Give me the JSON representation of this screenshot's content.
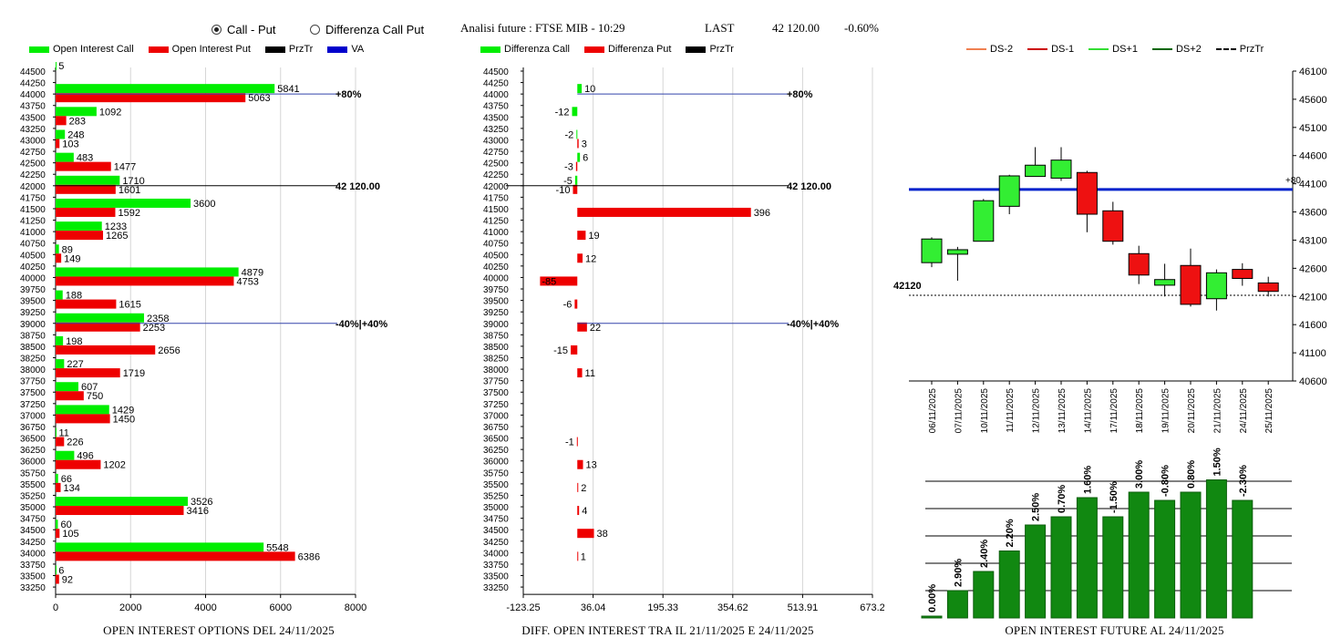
{
  "controls": {
    "radio_call_put": "Call - Put",
    "radio_diff": "Differenza Call Put",
    "analysis_label": "Analisi future : FTSE MIB - 10:29",
    "last_label": "LAST",
    "last_value": "42 120.00",
    "last_change": "-0.60%"
  },
  "legend1": [
    {
      "label": "Open Interest Call",
      "color": "#00ee00"
    },
    {
      "label": "Open Interest Put",
      "color": "#ee0000"
    },
    {
      "label": "PrzTr",
      "color": "#000000"
    },
    {
      "label": "VA",
      "color": "#0000cc"
    }
  ],
  "legend2": [
    {
      "label": "Differenza Call",
      "color": "#00ee00"
    },
    {
      "label": "Differenza Put",
      "color": "#ee0000"
    },
    {
      "label": "PrzTr",
      "color": "#000000"
    }
  ],
  "legend3": [
    {
      "label": "DS-2",
      "color": "#f08050",
      "dash": false
    },
    {
      "label": "DS-1",
      "color": "#cc0000",
      "dash": false
    },
    {
      "label": "DS+1",
      "color": "#33dd33",
      "dash": false
    },
    {
      "label": "DS+2",
      "color": "#006600",
      "dash": false
    },
    {
      "label": "PrzTr",
      "color": "#000000",
      "dash": true
    }
  ],
  "captions": {
    "left": "OPEN INTEREST OPTIONS DEL 24/11/2025",
    "mid": "DIFF. OPEN INTEREST TRA IL 21/11/2025 E 24/11/2025",
    "right": "OPEN INTEREST FUTURE AL 24/11/2025"
  },
  "chart_data": [
    {
      "type": "bar",
      "orientation": "horizontal",
      "categories": [
        "44500",
        "44250",
        "44000",
        "43750",
        "43500",
        "43250",
        "43000",
        "42750",
        "42500",
        "42250",
        "42000",
        "41750",
        "41500",
        "41250",
        "41000",
        "40750",
        "40500",
        "40250",
        "40000",
        "39750",
        "39500",
        "39250",
        "39000",
        "38750",
        "38500",
        "38250",
        "38000",
        "37750",
        "37500",
        "37250",
        "37000",
        "36750",
        "36500",
        "36250",
        "36000",
        "35750",
        "35500",
        "35250",
        "35000",
        "34750",
        "34500",
        "34250",
        "34000",
        "33750",
        "33500",
        "33250"
      ],
      "series": [
        {
          "name": "Open Interest Call",
          "values": [
            5,
            null,
            5841,
            null,
            1092,
            null,
            248,
            null,
            483,
            null,
            1710,
            null,
            3600,
            null,
            1233,
            null,
            89,
            null,
            4879,
            null,
            188,
            null,
            2358,
            null,
            198,
            null,
            227,
            null,
            607,
            null,
            1429,
            null,
            11,
            null,
            496,
            null,
            66,
            null,
            3526,
            null,
            60,
            null,
            5548,
            null,
            6,
            null
          ]
        },
        {
          "name": "Open Interest Put",
          "values": [
            null,
            null,
            5063,
            null,
            283,
            null,
            103,
            null,
            1477,
            null,
            1601,
            null,
            1592,
            null,
            1265,
            null,
            149,
            null,
            4753,
            null,
            1615,
            null,
            2253,
            null,
            2656,
            null,
            1719,
            null,
            750,
            null,
            1450,
            null,
            226,
            null,
            1202,
            null,
            134,
            null,
            3416,
            null,
            105,
            null,
            6386,
            null,
            92,
            null
          ]
        }
      ],
      "xlim": [
        0,
        8000
      ],
      "xticks": [
        "0",
        "2000",
        "4000",
        "6000",
        "8000"
      ],
      "annotations": [
        {
          "level": "44000",
          "text": "+80%",
          "color": "#3344aa"
        },
        {
          "level": "42000",
          "text": "42 120.00",
          "color": "#000000"
        },
        {
          "level": "39000",
          "text": "-40%|+40%",
          "color": "#3344aa"
        }
      ]
    },
    {
      "type": "bar",
      "orientation": "horizontal",
      "categories": [
        "44500",
        "44250",
        "44000",
        "43750",
        "43500",
        "43250",
        "43000",
        "42750",
        "42500",
        "42250",
        "42000",
        "41750",
        "41500",
        "41250",
        "41000",
        "40750",
        "40500",
        "40250",
        "40000",
        "39750",
        "39500",
        "39250",
        "39000",
        "38750",
        "38500",
        "38250",
        "38000",
        "37750",
        "37500",
        "37250",
        "37000",
        "36750",
        "36500",
        "36250",
        "36000",
        "35750",
        "35500",
        "35250",
        "35000",
        "34750",
        "34500",
        "34250",
        "34000",
        "33750",
        "33500",
        "33250"
      ],
      "series": [
        {
          "name": "Differenza Call",
          "values": [
            null,
            null,
            10,
            null,
            -12,
            null,
            -2,
            null,
            6,
            null,
            -5,
            null,
            null,
            null,
            null,
            null,
            null,
            null,
            null,
            null,
            null,
            null,
            null,
            null,
            null,
            null,
            null,
            null,
            null,
            null,
            null,
            null,
            null,
            null,
            null,
            null,
            null,
            null,
            null,
            null,
            null,
            null,
            null,
            null,
            null,
            null
          ]
        },
        {
          "name": "Differenza Put",
          "values": [
            null,
            null,
            null,
            null,
            null,
            null,
            3,
            null,
            -3,
            null,
            -10,
            null,
            396,
            null,
            19,
            null,
            12,
            null,
            -85,
            null,
            -6,
            null,
            22,
            null,
            -15,
            null,
            11,
            null,
            null,
            null,
            null,
            null,
            -1,
            null,
            13,
            null,
            2,
            null,
            4,
            null,
            38,
            null,
            1,
            null,
            null,
            null
          ]
        }
      ],
      "xlim": [
        -123.25,
        673.2
      ],
      "xticks": [
        "-123.25",
        "36.04",
        "195.33",
        "354.62",
        "513.91",
        "673.2"
      ],
      "annotations": [
        {
          "level": "44000",
          "text": "+80%",
          "color": "#3344aa"
        },
        {
          "level": "42000",
          "text": "42 120.00",
          "color": "#000000"
        },
        {
          "level": "39000",
          "text": "-40%|+40%",
          "color": "#3344aa"
        }
      ]
    },
    {
      "type": "candlestick",
      "categories": [
        "06/11/2025",
        "07/11/2025",
        "10/11/2025",
        "11/11/2025",
        "12/11/2025",
        "13/11/2025",
        "14/11/2025",
        "17/11/2025",
        "18/11/2025",
        "19/11/2025",
        "20/11/2025",
        "21/11/2025",
        "24/11/2025",
        "25/11/2025"
      ],
      "ohlc": [
        [
          42700,
          43150,
          42620,
          43120
        ],
        [
          42850,
          42980,
          42380,
          42930
        ],
        [
          43080,
          43830,
          43080,
          43800
        ],
        [
          43700,
          44260,
          43560,
          44240
        ],
        [
          44230,
          44750,
          44230,
          44430
        ],
        [
          44200,
          44750,
          44150,
          44520
        ],
        [
          44300,
          44330,
          43240,
          43560
        ],
        [
          43620,
          43780,
          43020,
          43080
        ],
        [
          42860,
          43000,
          42320,
          42480
        ],
        [
          42300,
          42680,
          42100,
          42400
        ],
        [
          42650,
          42950,
          41920,
          41960
        ],
        [
          42060,
          42580,
          41850,
          42520
        ],
        [
          42580,
          42690,
          42290,
          42420
        ],
        [
          42340,
          42450,
          42100,
          42190
        ]
      ],
      "ylim": [
        40600,
        46100
      ],
      "yticks": [
        "40600",
        "41100",
        "41600",
        "42100",
        "42600",
        "43100",
        "43600",
        "44100",
        "44600",
        "45100",
        "45600",
        "46100"
      ],
      "blue_line": 44000,
      "blue_line_label": "+80",
      "przTr": 42120,
      "przTr_label": "42120"
    },
    {
      "type": "bar",
      "categories": [
        "06/11/2025",
        "07/11/2025",
        "10/11/2025",
        "11/11/2025",
        "12/11/2025",
        "13/11/2025",
        "14/11/2025",
        "17/11/2025",
        "18/11/2025",
        "19/11/2025",
        "20/11/2025",
        "21/11/2025",
        "24/11/2025",
        "25/11/2025"
      ],
      "values": [
        0.0,
        2.9,
        2.4,
        2.2,
        2.5,
        0.7,
        1.6,
        -1.5,
        3.0,
        -0.8,
        0.8,
        1.5,
        -2.3,
        null
      ],
      "heights": [
        0.0,
        1.0,
        1.7,
        2.45,
        3.4,
        3.7,
        4.4,
        3.7,
        4.6,
        4.3,
        4.6,
        5.05,
        4.3,
        null
      ],
      "labels": [
        "0.00%",
        "2.90%",
        "2.40%",
        "2.20%",
        "2.50%",
        "0.70%",
        "1.60%",
        "-1.50%",
        "3.00%",
        "-0.80%",
        "0.80%",
        "1.50%",
        "-2.30%",
        ""
      ]
    }
  ]
}
